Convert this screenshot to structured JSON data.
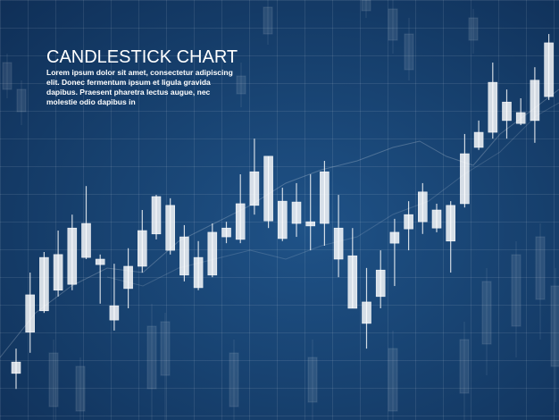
{
  "chart_data": {
    "type": "candlestick",
    "title": "CANDLESTICK CHART",
    "description": [
      "Lorem ipsum dolor sit amet, consectetur adipiscing",
      "elit. Donec fermentum ipsum et ligula gravida",
      "dapibus. Praesent pharetra lectus augue, nec",
      "molestie odio dapibus in"
    ],
    "color": "#ffffff",
    "ylim": [
      0,
      100
    ],
    "open": [
      11.1,
      20.9,
      26.0,
      30.9,
      32.3,
      38.7,
      37.0,
      23.8,
      31.3,
      36.6,
      44.3,
      51.1,
      43.6,
      38.7,
      34.5,
      43.6,
      43.0,
      51.1,
      62.8,
      52.1,
      46.8,
      46.2,
      46.8,
      45.7,
      39.1,
      28.1,
      29.4,
      42.1,
      45.5,
      47.2,
      50.0,
      51.1,
      51.5,
      64.9,
      68.5,
      75.7,
      70.6,
      71.3,
      77.0
    ],
    "high": [
      17.0,
      35.1,
      40.0,
      45.1,
      48.9,
      55.7,
      39.4,
      37.2,
      40.9,
      50.0,
      53.6,
      52.8,
      46.4,
      42.6,
      46.8,
      47.2,
      58.5,
      67.0,
      62.8,
      55.3,
      56.4,
      58.5,
      61.7,
      53.6,
      45.7,
      36.2,
      40.4,
      47.9,
      52.1,
      56.4,
      51.5,
      52.1,
      68.1,
      71.3,
      85.1,
      78.7,
      76.6,
      84.0,
      91.9
    ],
    "low": [
      7.4,
      16.0,
      25.5,
      29.4,
      30.9,
      38.3,
      27.7,
      21.3,
      26.6,
      35.1,
      43.0,
      39.4,
      33.0,
      30.9,
      34.0,
      42.1,
      42.1,
      48.9,
      45.7,
      42.6,
      43.6,
      40.4,
      41.5,
      34.0,
      26.6,
      17.0,
      26.6,
      31.9,
      40.4,
      44.3,
      44.7,
      35.1,
      50.6,
      64.3,
      67.0,
      67.0,
      70.2,
      66.0,
      76.2
    ],
    "close": [
      13.8,
      29.8,
      38.7,
      39.4,
      45.7,
      46.8,
      38.3,
      27.2,
      36.6,
      45.1,
      53.2,
      40.4,
      34.5,
      31.5,
      44.7,
      45.7,
      51.5,
      59.1,
      47.4,
      43.2,
      51.9,
      47.2,
      59.1,
      38.3,
      26.6,
      23.0,
      35.7,
      44.7,
      48.9,
      54.3,
      45.7,
      42.6,
      63.4,
      68.5,
      80.4,
      71.3,
      73.2,
      80.9,
      89.8
    ]
  }
}
